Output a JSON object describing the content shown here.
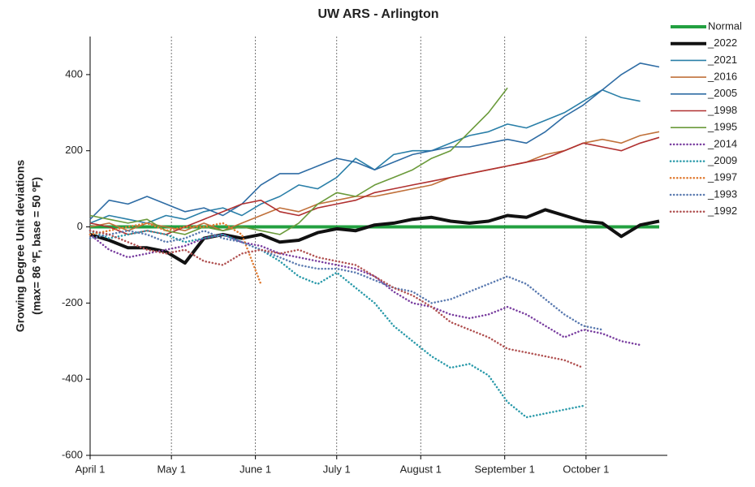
{
  "chart_data": {
    "type": "line",
    "title": "UW ARS - Arlington",
    "y_label": [
      "Growing Degree Unit deviations",
      "(max= 86 ºF, base = 50 ºF)"
    ],
    "xlim": [
      0,
      213
    ],
    "xticks": [
      {
        "value": 0,
        "label": "April 1"
      },
      {
        "value": 30,
        "label": "May 1"
      },
      {
        "value": 61,
        "label": "June 1"
      },
      {
        "value": 91,
        "label": "July 1"
      },
      {
        "value": 122,
        "label": "August 1"
      },
      {
        "value": 153,
        "label": "September 1"
      },
      {
        "value": 183,
        "label": "October 1"
      }
    ],
    "ylim": [
      -600,
      500
    ],
    "yticks": [
      -600,
      -400,
      -200,
      0,
      200,
      400
    ],
    "x": [
      0,
      7,
      14,
      21,
      28,
      35,
      42,
      49,
      56,
      63,
      70,
      77,
      84,
      91,
      98,
      105,
      112,
      119,
      126,
      133,
      140,
      147,
      154,
      161,
      168,
      175,
      182,
      189,
      196,
      203,
      210
    ],
    "series": [
      {
        "name": "Normal",
        "color": "#22a040",
        "width": 4,
        "dotted": false,
        "values": [
          0,
          0,
          0,
          0,
          0,
          0,
          0,
          0,
          0,
          0,
          0,
          0,
          0,
          0,
          0,
          0,
          0,
          0,
          0,
          0,
          0,
          0,
          0,
          0,
          0,
          0,
          0,
          0,
          0,
          0,
          0
        ]
      },
      {
        "name": "_2022",
        "color": "#111111",
        "width": 4,
        "dotted": false,
        "values": [
          -20,
          -35,
          -55,
          -55,
          -65,
          -95,
          -30,
          -20,
          -30,
          -20,
          -40,
          -35,
          -15,
          -5,
          -10,
          5,
          10,
          20,
          25,
          15,
          10,
          15,
          30,
          25,
          45,
          30,
          15,
          10,
          -25,
          5,
          15
        ]
      },
      {
        "name": "_2021",
        "color": "#2a7fa8",
        "width": 1.6,
        "dotted": false,
        "values": [
          10,
          30,
          20,
          10,
          30,
          20,
          40,
          50,
          30,
          60,
          80,
          110,
          100,
          130,
          180,
          150,
          190,
          200,
          200,
          220,
          240,
          250,
          270,
          260,
          280,
          300,
          330,
          360,
          340,
          330,
          null
        ]
      },
      {
        "name": "_2016",
        "color": "#c0703a",
        "width": 1.6,
        "dotted": false,
        "values": [
          0,
          10,
          -10,
          10,
          0,
          -10,
          10,
          -10,
          10,
          30,
          50,
          40,
          60,
          70,
          80,
          80,
          90,
          100,
          110,
          130,
          140,
          150,
          160,
          170,
          190,
          200,
          220,
          230,
          220,
          240,
          250
        ]
      },
      {
        "name": "_2005",
        "color": "#2e6ca4",
        "width": 1.6,
        "dotted": false,
        "values": [
          20,
          70,
          60,
          80,
          60,
          40,
          50,
          30,
          60,
          110,
          140,
          140,
          160,
          180,
          170,
          150,
          170,
          190,
          200,
          210,
          210,
          220,
          230,
          220,
          250,
          290,
          320,
          360,
          400,
          430,
          420
        ]
      },
      {
        "name": "_1998",
        "color": "#b03030",
        "width": 1.6,
        "dotted": false,
        "values": [
          10,
          0,
          -20,
          -10,
          -20,
          0,
          20,
          40,
          60,
          70,
          40,
          30,
          50,
          60,
          70,
          90,
          100,
          110,
          120,
          130,
          140,
          150,
          160,
          170,
          180,
          200,
          220,
          210,
          200,
          220,
          235
        ]
      },
      {
        "name": "_1995",
        "color": "#6a9a3a",
        "width": 1.6,
        "dotted": false,
        "values": [
          30,
          20,
          10,
          20,
          -10,
          -20,
          0,
          -10,
          0,
          -10,
          -20,
          10,
          60,
          90,
          80,
          110,
          130,
          150,
          180,
          200,
          250,
          300,
          365,
          null,
          null,
          null,
          null,
          null,
          null,
          null,
          null
        ]
      },
      {
        "name": "_2014",
        "color": "#7a3fa0",
        "width": 2.5,
        "dotted": true,
        "values": [
          -20,
          -60,
          -80,
          -70,
          -60,
          -50,
          -30,
          -20,
          -40,
          -50,
          -70,
          -80,
          -90,
          -100,
          -110,
          -130,
          -170,
          -200,
          -210,
          -230,
          -240,
          -230,
          -210,
          -230,
          -260,
          -290,
          -270,
          -280,
          -300,
          -310,
          null
        ]
      },
      {
        "name": "_2009",
        "color": "#2a9aaa",
        "width": 2.5,
        "dotted": true,
        "values": [
          -10,
          -30,
          -20,
          -10,
          -20,
          -40,
          -30,
          -20,
          -40,
          -60,
          -90,
          -130,
          -150,
          -120,
          -160,
          -200,
          -260,
          -300,
          -340,
          -370,
          -360,
          -390,
          -460,
          -500,
          -490,
          -480,
          -470,
          null,
          null,
          null,
          null
        ]
      },
      {
        "name": "_1997",
        "color": "#e07a30",
        "width": 2.5,
        "dotted": true,
        "values": [
          -20,
          -10,
          0,
          10,
          -10,
          0,
          0,
          10,
          -20,
          -150,
          null,
          null,
          null,
          null,
          null,
          null,
          null,
          null,
          null,
          null,
          null,
          null,
          null,
          null,
          null,
          null,
          null,
          null,
          null,
          null,
          null
        ]
      },
      {
        "name": "_1993",
        "color": "#5a7ab0",
        "width": 2.5,
        "dotted": true,
        "values": [
          -30,
          -20,
          -10,
          -20,
          -40,
          -30,
          -10,
          -30,
          -40,
          -60,
          -80,
          -100,
          -110,
          -110,
          -120,
          -140,
          -160,
          -170,
          -200,
          -190,
          -170,
          -150,
          -130,
          -150,
          -190,
          -230,
          -260,
          -270,
          null,
          null,
          null
        ]
      },
      {
        "name": "_1992",
        "color": "#b05050",
        "width": 2.5,
        "dotted": true,
        "values": [
          -10,
          -20,
          -40,
          -60,
          -70,
          -60,
          -90,
          -100,
          -70,
          -60,
          -70,
          -60,
          -80,
          -90,
          -100,
          -130,
          -160,
          -180,
          -210,
          -250,
          -270,
          -290,
          -320,
          -330,
          -340,
          -350,
          -370,
          null,
          null,
          null,
          null
        ]
      }
    ]
  }
}
